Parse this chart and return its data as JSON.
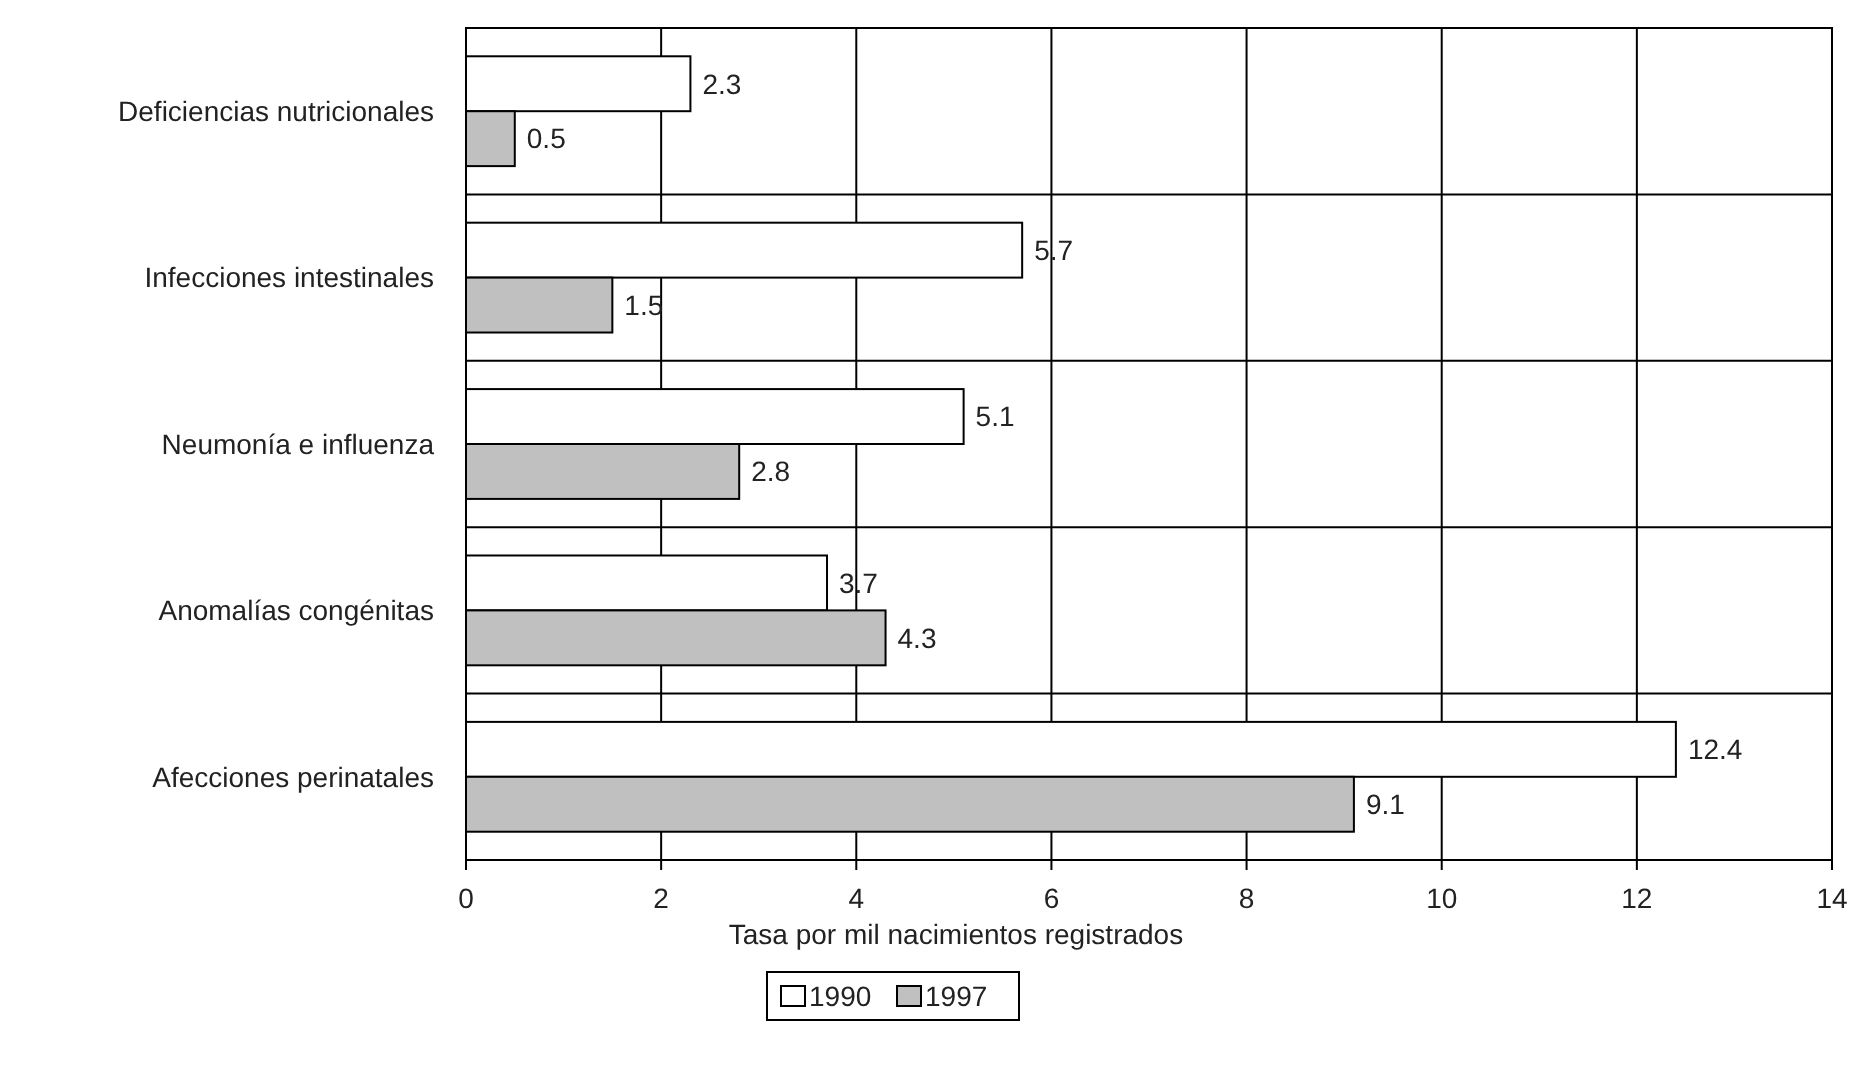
{
  "chart_data": {
    "type": "bar",
    "orientation": "horizontal",
    "xlabel": "Tasa por mil nacimientos registrados",
    "categories": [
      "Deficiencias nutricionales",
      "Infecciones intestinales",
      "Neumonía e influenza",
      "Anomalías congénitas",
      "Afecciones perinatales"
    ],
    "series": [
      {
        "name": "1990",
        "color": "#ffffff",
        "values": [
          2.3,
          5.7,
          5.1,
          3.7,
          12.4
        ]
      },
      {
        "name": "1997",
        "color": "#c0c0c0",
        "values": [
          0.5,
          1.5,
          2.8,
          4.3,
          9.1
        ]
      }
    ],
    "xlim": [
      0,
      14
    ],
    "xticks": [
      0,
      2,
      4,
      6,
      8,
      10,
      12,
      14
    ],
    "grid": true,
    "data_labels": true,
    "legend": "bottom"
  }
}
